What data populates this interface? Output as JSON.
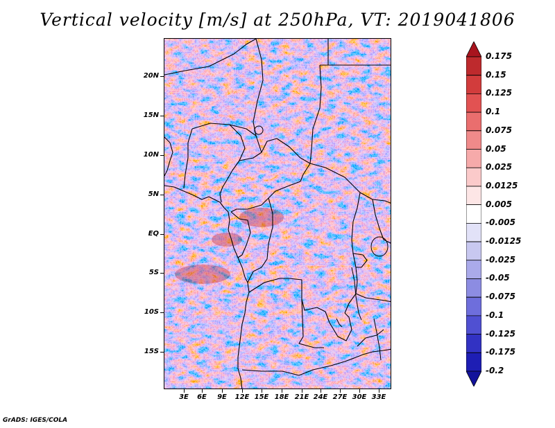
{
  "title": "Vertical velocity [m/s] at 250hPa, VT: 2019041806",
  "credit": "GrADS: IGES/COLA",
  "map": {
    "region": "Central Africa",
    "y_axis_labels": [
      "20N",
      "15N",
      "10N",
      "5N",
      "EQ",
      "5S",
      "10S",
      "15S"
    ],
    "x_axis_labels": [
      "3E",
      "6E",
      "9E",
      "12E",
      "15E",
      "18E",
      "21E",
      "24E",
      "27E",
      "30E",
      "33E"
    ]
  },
  "colorbar": {
    "labels": [
      "0.175",
      "0.15",
      "0.125",
      "0.1",
      "0.075",
      "0.05",
      "0.025",
      "0.0125",
      "0.005",
      "-0.005",
      "-0.0125",
      "-0.025",
      "-0.05",
      "-0.075",
      "-0.1",
      "-0.125",
      "-0.175",
      "-0.2"
    ],
    "colors": [
      "#a8141e",
      "#be2a2d",
      "#d23c3c",
      "#e25252",
      "#ea6e6e",
      "#f08a8a",
      "#f6aaaa",
      "#fbcaca",
      "#fde6e6",
      "#ffffff",
      "#e2e2f8",
      "#c8c8f0",
      "#aaaaea",
      "#8c8ce2",
      "#6e6edc",
      "#5050d2",
      "#3232c3",
      "#1e1eb4",
      "#12129b"
    ]
  }
}
